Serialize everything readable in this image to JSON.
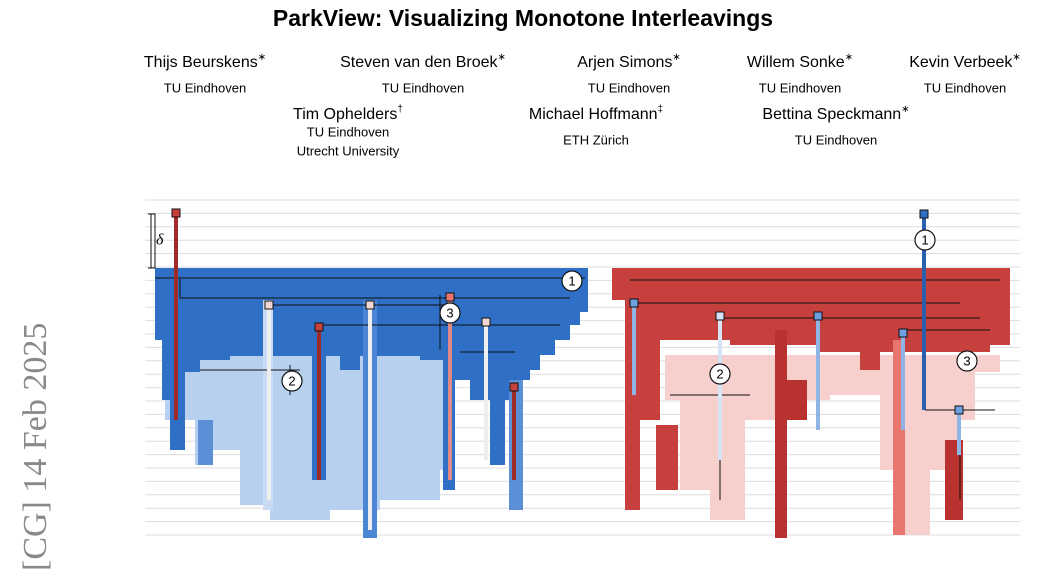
{
  "header": {
    "title": "ParkView: Visualizing Monotone Interleavings",
    "sidebar": "[CG]  14 Feb 2025"
  },
  "authors": [
    {
      "name": "Thijs Beurskens",
      "mark": "∗",
      "affiliations": [
        "TU Eindhoven"
      ]
    },
    {
      "name": "Steven van den Broek",
      "mark": "∗",
      "affiliations": [
        "TU Eindhoven"
      ]
    },
    {
      "name": "Arjen Simons",
      "mark": "∗",
      "affiliations": [
        "TU Eindhoven"
      ]
    },
    {
      "name": "Willem Sonke",
      "mark": "∗",
      "affiliations": [
        "TU Eindhoven"
      ]
    },
    {
      "name": "Kevin Verbeek",
      "mark": "∗",
      "affiliations": [
        "TU Eindhoven"
      ]
    },
    {
      "name": "Tim Ophelders",
      "mark": "†",
      "affiliations": [
        "TU Eindhoven",
        "Utrecht University"
      ]
    },
    {
      "name": "Michael Hoffmann",
      "mark": "‡",
      "affiliations": [
        "ETH Zürich"
      ]
    },
    {
      "name": "Bettina Speckmann",
      "mark": "∗",
      "affiliations": [
        "TU Eindhoven"
      ]
    }
  ],
  "figure": {
    "delta": "δ",
    "labels": [
      "1",
      "3",
      "2",
      "1",
      "2",
      "3"
    ]
  }
}
